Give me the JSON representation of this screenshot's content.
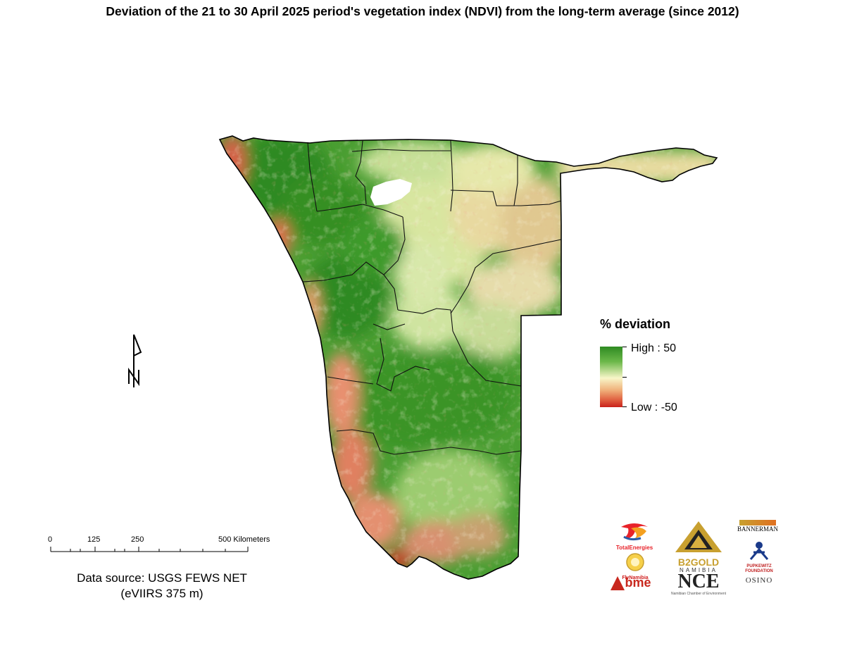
{
  "title": "Deviation of the 21 to 30 April 2025 period's vegetation index (NDVI) from the long-term average (since 2012)",
  "legend": {
    "title": "% deviation",
    "high_label": "High : 50",
    "low_label": "Low : -50",
    "high_color": "#2e8b22",
    "mid_color": "#f8f6c8",
    "low_color": "#c8201a"
  },
  "scale_bar": {
    "labels": [
      "0",
      "125",
      "250",
      "500 Kilometers"
    ]
  },
  "source": {
    "line1": "Data source: USGS FEWS NET",
    "line2": "(eVIIRS 375 m)"
  },
  "north_arrow": {
    "label": "N",
    "icon": "north-arrow-icon"
  },
  "logos": {
    "totalenergies": "TotalEnergies",
    "b2gold": "B2GOLD",
    "b2gold_sub": "NAMIBIA",
    "bannerman": "BANNERMAN",
    "flynamibia": "FlyNamibia",
    "pupkewitz": "PUPKEWITZ FOUNDATION",
    "bme": "bme",
    "nce": "NCE",
    "nce_sub": "Namibian Chamber of Environment",
    "osino": "OSINO"
  }
}
